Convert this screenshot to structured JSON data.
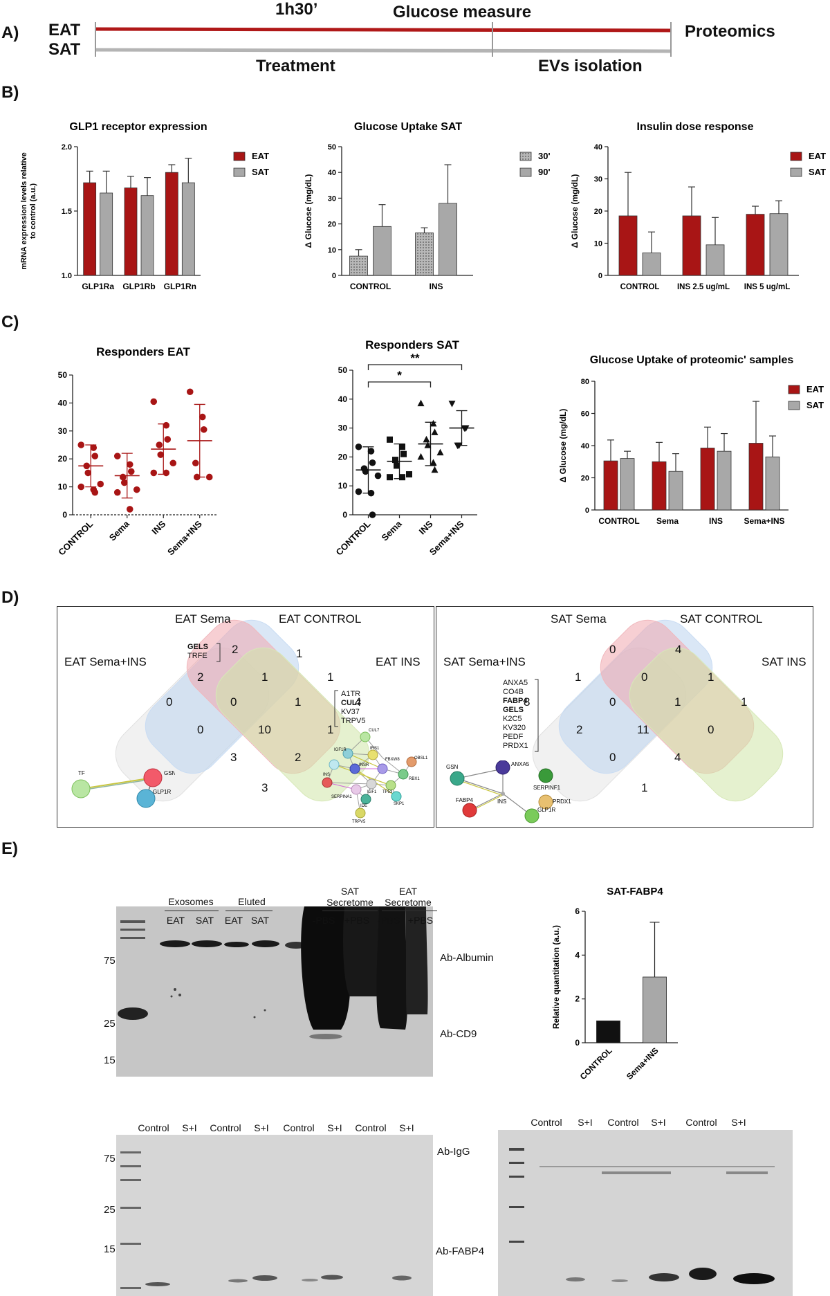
{
  "panel_labels": [
    "A)",
    "B)",
    "C)",
    "D)",
    "E)"
  ],
  "panelA": {
    "row1": "EAT",
    "row2": "SAT",
    "top_left": "1h30’",
    "top_right": "Glucose measure",
    "bottom_left": "Treatment",
    "bottom_right": "EVs isolation",
    "end": "Proteomics",
    "colors": {
      "eat": "#b01818",
      "sat": "#b4b4b4"
    }
  },
  "colors": {
    "eat": "#a81515",
    "sat": "#a8a8a8",
    "sat_dotted": "#9e9e9e"
  },
  "chart_data": [
    {
      "id": "b1",
      "type": "bar",
      "title": "GLP1 receptor expression",
      "ylabel": "mRNA expression levels relative to control (a.u.)",
      "ylabel_lines": [
        "mRNA expression levels relative",
        "to control (a.u.)"
      ],
      "categories": [
        "GLP1Ra",
        "GLP1Rb",
        "GLP1Rn"
      ],
      "series": [
        {
          "name": "EAT",
          "values": [
            1.72,
            1.68,
            1.8
          ],
          "err": [
            0.09,
            0.09,
            0.06
          ]
        },
        {
          "name": "SAT",
          "values": [
            1.64,
            1.62,
            1.72
          ],
          "err": [
            0.17,
            0.14,
            0.19
          ]
        }
      ],
      "ylim": [
        1.0,
        2.0
      ],
      "ticks": [
        "1.0",
        "1.5",
        "2.0"
      ],
      "tick_values": [
        1.0,
        1.5,
        2.0
      ],
      "legend": "top-right"
    },
    {
      "id": "b2",
      "type": "bar",
      "title": "Glucose Uptake SAT",
      "ylabel": "Δ Glucose (mg/dL)",
      "categories": [
        "CONTROL",
        "INS"
      ],
      "series": [
        {
          "name": "30'",
          "values": [
            7.5,
            16.5
          ],
          "err": [
            2.5,
            2.0
          ]
        },
        {
          "name": "90'",
          "values": [
            19,
            28
          ],
          "err": [
            8.5,
            15
          ]
        }
      ],
      "ylim": [
        0,
        50
      ],
      "ticks": [
        "0",
        "10",
        "20",
        "30",
        "40",
        "50"
      ],
      "tick_values": [
        0,
        10,
        20,
        30,
        40,
        50
      ],
      "legend": "top-right"
    },
    {
      "id": "b3",
      "type": "bar",
      "title": "Insulin dose response",
      "ylabel": "Δ Glucose (mg/dL)",
      "categories": [
        "CONTROL",
        "INS 2.5 ug/mL",
        "INS 5 ug/mL"
      ],
      "series": [
        {
          "name": "EAT",
          "values": [
            18.5,
            18.5,
            19
          ],
          "err": [
            13.5,
            9,
            2.5
          ]
        },
        {
          "name": "SAT",
          "values": [
            7,
            9.5,
            19.2
          ],
          "err": [
            6.5,
            8.5,
            4
          ]
        }
      ],
      "ylim": [
        0,
        40
      ],
      "ticks": [
        "0",
        "10",
        "20",
        "30",
        "40"
      ],
      "tick_values": [
        0,
        10,
        20,
        30,
        40
      ],
      "legend": "top-right"
    },
    {
      "id": "c1",
      "type": "scatter",
      "title": "Responders EAT",
      "categories": [
        "CONTROL",
        "Sema",
        "INS",
        "Sema+INS"
      ],
      "groups": [
        {
          "points": [
            25,
            24,
            21,
            17.5,
            15,
            11,
            10,
            9,
            8
          ],
          "mean": 17.5,
          "sd": 7.5
        },
        {
          "points": [
            21,
            18,
            15.5,
            13.5,
            11.5,
            9,
            8,
            2
          ],
          "mean": 14,
          "sd": 8
        },
        {
          "points": [
            40.5,
            32,
            27,
            25,
            21.5,
            18.5,
            15,
            15
          ],
          "mean": 23.5,
          "sd": 9
        },
        {
          "points": [
            44,
            35,
            30.5,
            18.5,
            13.5,
            13.5
          ],
          "mean": 26.5,
          "sd": 13
        }
      ],
      "ylim": [
        0,
        50
      ],
      "ticks": [
        "0",
        "10",
        "20",
        "30",
        "40",
        "50"
      ],
      "tick_values": [
        0,
        10,
        20,
        30,
        40,
        50
      ]
    },
    {
      "id": "c2",
      "type": "scatter",
      "title": "Responders SAT",
      "categories": [
        "CONTROL",
        "Sema",
        "INS",
        "Sema+INS"
      ],
      "groups": [
        {
          "marker": "circle",
          "points": [
            23.5,
            22,
            18,
            16,
            15,
            13.5,
            8,
            7.5,
            0
          ],
          "mean": 15.5,
          "sd": 8
        },
        {
          "marker": "square",
          "points": [
            26,
            23.5,
            21,
            19,
            17,
            14,
            13,
            13
          ],
          "mean": 18.5,
          "sd": 6
        },
        {
          "marker": "triangle",
          "points": [
            38.5,
            31.5,
            28.5,
            26,
            24,
            21.5,
            20,
            18,
            15.5
          ],
          "mean": 24.5,
          "sd": 7.5
        },
        {
          "marker": "triangle-down",
          "points": [
            38.5,
            30,
            30,
            24,
            24
          ],
          "mean": 30,
          "sd": 6
        }
      ],
      "significance": [
        {
          "from": 0,
          "to": 2,
          "label": "*"
        },
        {
          "from": 0,
          "to": 3,
          "label": "**"
        }
      ],
      "ylim": [
        0,
        50
      ],
      "ticks": [
        "0",
        "10",
        "20",
        "30",
        "40",
        "50"
      ],
      "tick_values": [
        0,
        10,
        20,
        30,
        40,
        50
      ]
    },
    {
      "id": "c3",
      "type": "bar",
      "title": "Glucose Uptake of proteomic' samples",
      "ylabel": "Δ Glucose (mg/dL)",
      "categories": [
        "CONTROL",
        "Sema",
        "INS",
        "Sema+INS"
      ],
      "series": [
        {
          "name": "EAT",
          "values": [
            30.5,
            30,
            38.5,
            41.5
          ],
          "err": [
            13,
            12,
            13,
            26
          ]
        },
        {
          "name": "SAT",
          "values": [
            32,
            24,
            36.5,
            33
          ],
          "err": [
            4.5,
            11,
            11,
            13
          ]
        }
      ],
      "ylim": [
        0,
        80
      ],
      "ticks": [
        "0",
        "20",
        "40",
        "60",
        "80"
      ],
      "tick_values": [
        0,
        20,
        40,
        60,
        80
      ],
      "legend": "top-right"
    },
    {
      "id": "e1",
      "type": "bar",
      "title": "SAT-FABP4",
      "ylabel": "Relative quantitation (a.u.)",
      "categories": [
        "CONTROL",
        "Sema+INS"
      ],
      "values": [
        1,
        3
      ],
      "err": [
        0,
        2.5
      ],
      "bar_colors": [
        "#111111",
        "#a8a8a8"
      ],
      "ylim": [
        0,
        6
      ],
      "ticks": [
        "0",
        "2",
        "4",
        "6"
      ],
      "tick_values": [
        0,
        2,
        4,
        6
      ]
    }
  ],
  "venn_eat": {
    "sets": [
      "EAT Sema",
      "EAT CONTROL",
      "EAT Sema+INS",
      "EAT INS"
    ],
    "counts": [
      "2",
      "1",
      "2",
      "1",
      "1",
      "0",
      "0",
      "1",
      "4",
      "0",
      "10",
      "1",
      "3",
      "2",
      "3"
    ],
    "list_left": [
      "GELS",
      "TRFE"
    ],
    "list_right": [
      "A1TR",
      "CUL7",
      "KV37",
      "TRPV5"
    ],
    "network_small": [
      "TF",
      "GSN",
      "GLP1R"
    ],
    "network_large": [
      "CUL7",
      "IGF1R",
      "IRS1",
      "FBXW8",
      "OBSL1",
      "INS",
      "INSR",
      "RBX1",
      "IGF1",
      "TP53",
      "SERPINA1",
      "IDE",
      "SKP1",
      "TRPV5"
    ]
  },
  "venn_sat": {
    "sets": [
      "SAT Sema",
      "SAT CONTROL",
      "SAT Sema+INS",
      "SAT INS"
    ],
    "counts": [
      "0",
      "4",
      "1",
      "0",
      "1",
      "1",
      "8",
      "0",
      "1",
      "2",
      "11",
      "0",
      "0",
      "4",
      "1"
    ],
    "list_left": [
      "ANXA5",
      "CO4B",
      "FABP4",
      "GELS",
      "K2C5",
      "KV320",
      "PEDF",
      "PRDX1"
    ],
    "network": [
      "GSN",
      "ANXA5",
      "SERPINF1",
      "INS",
      "PRDX1",
      "FABP4",
      "GLP1R"
    ]
  },
  "blot1": {
    "group_exosomes": "Exosomes",
    "group_eluted": "Eluted",
    "group_sat_sec": [
      "SAT",
      "Secretome"
    ],
    "group_eat_sec": [
      "EAT",
      "Secretome"
    ],
    "lanes": [
      "EAT",
      "SAT",
      "EAT",
      "SAT",
      "-PBS",
      "+PBS",
      "-PBS",
      "+PBS"
    ],
    "markers": [
      "75",
      "25",
      "15"
    ],
    "antibodies": [
      "Ab-Albumin",
      "Ab-CD9"
    ]
  },
  "blot2": {
    "lanes": [
      "Control",
      "S+I",
      "Control",
      "S+I",
      "Control",
      "S+I",
      "Control",
      "S+I"
    ],
    "markers": [
      "75",
      "25",
      "15"
    ],
    "antibodies": [
      "Ab-IgG",
      "Ab-FABP4"
    ]
  },
  "blot3": {
    "lanes": [
      "Control",
      "S+I",
      "Control",
      "S+I",
      "Control",
      "S+I"
    ]
  }
}
